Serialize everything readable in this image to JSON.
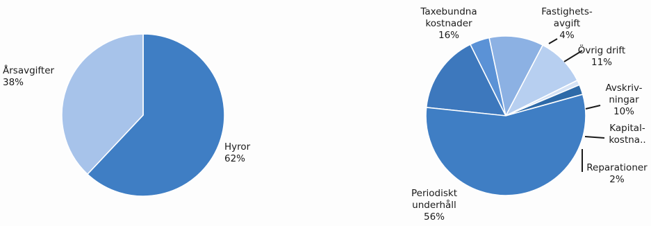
{
  "chart_data": [
    {
      "type": "pie",
      "slices": [
        {
          "label": "Hyror",
          "value": 62,
          "value_label": "62%",
          "color": "#3f7ec4"
        },
        {
          "label": "Årsavgifter",
          "value": 38,
          "value_label": "38%",
          "color": "#a7c3ea"
        }
      ]
    },
    {
      "type": "pie",
      "slices": [
        {
          "label": "Taxebundna kostnader",
          "label_lines": [
            "Taxebundna",
            "kostnader"
          ],
          "value": 16,
          "value_label": "16%",
          "color": "#3d78bd"
        },
        {
          "label": "Fastighetsavgift",
          "label_lines": [
            "Fastighets-",
            "avgift"
          ],
          "value": 4,
          "value_label": "4%",
          "color": "#5b92d6"
        },
        {
          "label": "Övrig drift",
          "label_lines": [
            "Övrig drift"
          ],
          "value": 11,
          "value_label": "11%",
          "color": "#8cb1e3"
        },
        {
          "label": "Avskrivningar",
          "label_lines": [
            "Avskriv-",
            "ningar"
          ],
          "value": 10,
          "value_label": "10%",
          "color": "#b7cff0"
        },
        {
          "label": "Kapitalkostna..",
          "label_lines": [
            "Kapital-",
            "kostna.."
          ],
          "value": 1,
          "value_label": "",
          "color": "#d5e3f6"
        },
        {
          "label": "Reparationer",
          "label_lines": [
            "Reparationer"
          ],
          "value": 2,
          "value_label": "2%",
          "color": "#2e6aa8"
        },
        {
          "label": "Periodiskt underhåll",
          "label_lines": [
            "Periodiskt",
            "underhåll"
          ],
          "value": 56,
          "value_label": "56%",
          "color": "#3f7ec4"
        }
      ]
    }
  ]
}
